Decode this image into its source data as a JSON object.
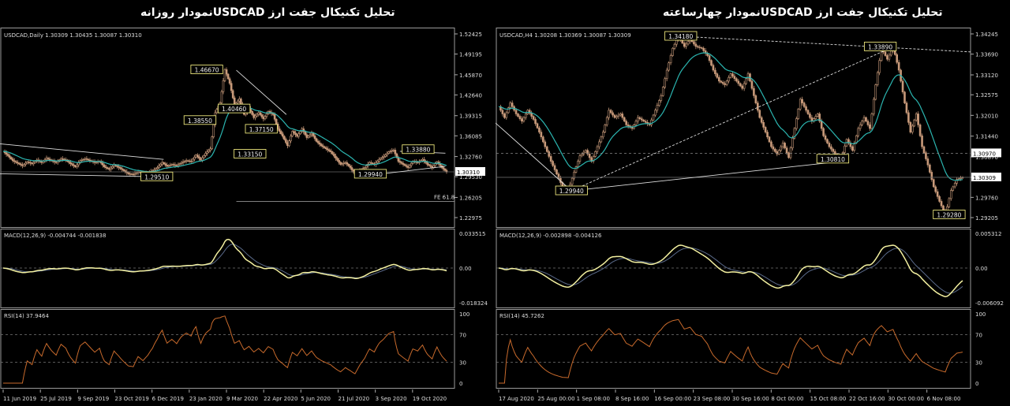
{
  "titles": {
    "left": "تحلیل تکنیکال جفت ارز  USDCADنمودار روزانه",
    "right": "تحلیل تکنیکال جفت ارز  USDCADنمودار چهارساعته"
  },
  "chart_data": [
    {
      "type": "line",
      "name": "daily",
      "header": "USDCAD,Daily  1.30309 1.30435 1.30087 1.30310",
      "yticks": [
        "1.52425",
        "1.49195",
        "1.45870",
        "1.42640",
        "1.39315",
        "1.36085",
        "1.32760",
        "1.29530",
        "1.26205",
        "1.22975"
      ],
      "ylim": [
        1.22975,
        1.52425
      ],
      "current_price": "1.30310",
      "annotation_fe": "FE 61.8",
      "price_labels": [
        {
          "text": "1.46670",
          "x": 0.455,
          "y": 1.4667
        },
        {
          "text": "1.38550",
          "x": 0.44,
          "y": 1.3855
        },
        {
          "text": "1.40460",
          "x": 0.515,
          "y": 1.404
        },
        {
          "text": "1.37150",
          "x": 0.575,
          "y": 1.3715
        },
        {
          "text": "1.33150",
          "x": 0.55,
          "y": 1.3315
        },
        {
          "text": "1.33880",
          "x": 0.92,
          "y": 1.3388
        },
        {
          "text": "1.29940",
          "x": 0.815,
          "y": 1.2994
        },
        {
          "text": "1.29510",
          "x": 0.345,
          "y": 1.2951
        }
      ],
      "xticks": [
        "11 Jun 2019",
        "25 Jul 2019",
        "9 Sep 2019",
        "23 Oct 2019",
        "6 Dec 2019",
        "23 Jan 2020",
        "9 Mar 2020",
        "22 Apr 2020",
        "5 Jun 2020",
        "21 Jul 2020",
        "3 Sep 2020",
        "19 Oct 2020"
      ],
      "macd": {
        "label": "MACD(12,26,9) -0.004744 -0.001838",
        "yticks": [
          "0.033515",
          "0.00",
          "-0.018324"
        ]
      },
      "rsi": {
        "label": "RSI(14) 37.9464",
        "yticks": [
          "100",
          "70",
          "30",
          "0"
        ]
      },
      "price": [
        1.336,
        1.329,
        1.321,
        1.317,
        1.313,
        1.319,
        1.316,
        1.322,
        1.318,
        1.325,
        1.321,
        1.318,
        1.324,
        1.322,
        1.316,
        1.311,
        1.321,
        1.324,
        1.321,
        1.318,
        1.32,
        1.311,
        1.307,
        1.314,
        1.31,
        1.305,
        1.3,
        1.299,
        1.303,
        1.3,
        1.302,
        1.305,
        1.31,
        1.318,
        1.312,
        1.315,
        1.313,
        1.318,
        1.321,
        1.32,
        1.33,
        1.322,
        1.333,
        1.34,
        1.398,
        1.414,
        1.467,
        1.445,
        1.41,
        1.42,
        1.395,
        1.405,
        1.39,
        1.398,
        1.388,
        1.4,
        1.395,
        1.372,
        1.36,
        1.345,
        1.368,
        1.36,
        1.372,
        1.358,
        1.365,
        1.352,
        1.345,
        1.34,
        1.335,
        1.325,
        1.315,
        1.318,
        1.31,
        1.299,
        1.305,
        1.31,
        1.318,
        1.315,
        1.323,
        1.328,
        1.335,
        1.338,
        1.32,
        1.315,
        1.31,
        1.32,
        1.318,
        1.323,
        1.315,
        1.31,
        1.319,
        1.31,
        1.303
      ]
    },
    {
      "type": "line",
      "name": "h4",
      "header": "USDCAD,H4  1.30208 1.30369 1.30087 1.30309",
      "yticks": [
        "1.34245",
        "1.33690",
        "1.33120",
        "1.32575",
        "1.32010",
        "1.31440",
        "1.30870",
        "1.30309",
        "1.29760",
        "1.29205"
      ],
      "ylim": [
        1.29205,
        1.34245
      ],
      "current_price": "1.30309",
      "level_price": "1.30970",
      "price_labels": [
        {
          "text": "1.34180",
          "x": 0.39,
          "y": 1.3418
        },
        {
          "text": "1.33890",
          "x": 0.81,
          "y": 1.3389
        },
        {
          "text": "1.30810",
          "x": 0.71,
          "y": 1.3081
        },
        {
          "text": "1.29940",
          "x": 0.16,
          "y": 1.2994
        },
        {
          "text": "1.29280",
          "x": 0.955,
          "y": 1.2928
        }
      ],
      "xticks": [
        "17 Aug 2020",
        "25 Aug 00:00",
        "1 Sep 08:00",
        "8 Sep 16:00",
        "16 Sep 00:00",
        "23 Sep 08:00",
        "30 Sep 16:00",
        "8 Oct 00:00",
        "15 Oct 08:00",
        "22 Oct 16:00",
        "30 Oct 00:00",
        "6 Nov 08:00"
      ],
      "macd": {
        "label": "MACD(12,26,9) -0.002898 -0.004126",
        "yticks": [
          "0.005312",
          "0.00",
          "-0.006092"
        ]
      },
      "rsi": {
        "label": "RSI(14) 45.7262",
        "yticks": [
          "100",
          "70",
          "30",
          "0"
        ]
      },
      "price": [
        1.3225,
        1.3195,
        1.3235,
        1.3205,
        1.3185,
        1.3215,
        1.319,
        1.3155,
        1.3115,
        1.3075,
        1.304,
        1.3005,
        1.2995,
        1.3045,
        1.309,
        1.3105,
        1.3075,
        1.3115,
        1.3155,
        1.3215,
        1.3195,
        1.3205,
        1.3175,
        1.3165,
        1.3195,
        1.3185,
        1.3175,
        1.3215,
        1.3255,
        1.3325,
        1.3385,
        1.3418,
        1.339,
        1.341,
        1.339,
        1.3385,
        1.3365,
        1.3325,
        1.3295,
        1.3285,
        1.3315,
        1.3295,
        1.3275,
        1.3315,
        1.3255,
        1.3195,
        1.3155,
        1.3115,
        1.3095,
        1.3125,
        1.3085,
        1.3165,
        1.3245,
        1.3215,
        1.3185,
        1.3205,
        1.3145,
        1.3115,
        1.3095,
        1.3081,
        1.3135,
        1.3105,
        1.3165,
        1.3195,
        1.3165,
        1.3285,
        1.3385,
        1.3355,
        1.3389,
        1.3325,
        1.3235,
        1.3155,
        1.3205,
        1.3115,
        1.3065,
        1.3005,
        1.2965,
        1.2928,
        1.2995,
        1.3025,
        1.3031
      ]
    }
  ]
}
